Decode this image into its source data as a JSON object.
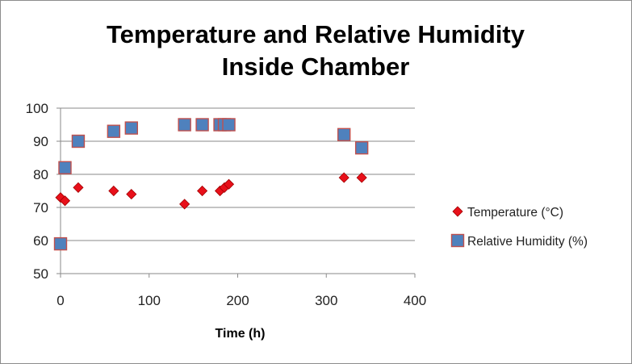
{
  "chart_data": {
    "type": "scatter",
    "title_line1": "Temperature and Relative Humidity",
    "title_line2": "Inside Chamber",
    "xlabel": "Time (h)",
    "ylabel": "",
    "xlim": [
      0,
      400
    ],
    "ylim": [
      50,
      100
    ],
    "x_ticks": [
      0,
      100,
      200,
      300,
      400
    ],
    "y_ticks": [
      50,
      60,
      70,
      80,
      90,
      100
    ],
    "grid": "horizontal",
    "legend_position": "right",
    "series": [
      {
        "name": "Temperature (°C)",
        "marker": "diamond",
        "color": "#e8101a",
        "x": [
          0,
          5,
          20,
          60,
          80,
          140,
          160,
          180,
          185,
          190,
          320,
          340
        ],
        "y": [
          73,
          72,
          76,
          75,
          74,
          71,
          75,
          75,
          76,
          77,
          79,
          79
        ]
      },
      {
        "name": "Relative Humidity (%)",
        "marker": "square",
        "color": "#4f81bd",
        "x": [
          0,
          5,
          20,
          60,
          80,
          140,
          160,
          180,
          185,
          190,
          320,
          340
        ],
        "y": [
          59,
          82,
          90,
          93,
          94,
          95,
          95,
          95,
          95,
          95,
          92,
          88
        ]
      }
    ]
  }
}
